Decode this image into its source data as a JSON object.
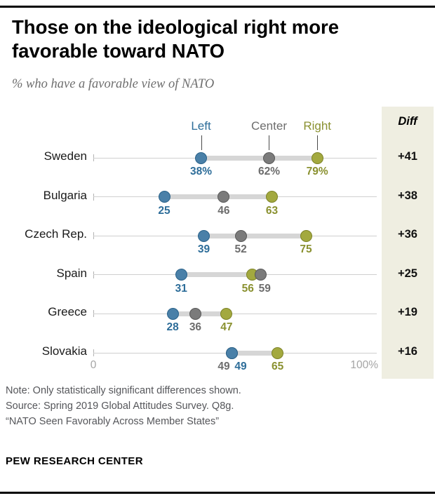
{
  "title": "Those on the ideological right more\nfavorable toward NATO",
  "subtitle": "% who have a favorable view of NATO",
  "notes": [
    "Note: Only statistically significant differences shown.",
    "Source: Spring 2019 Global Attitudes Survey. Q8g.",
    "“NATO Seen Favorably Across Member States”"
  ],
  "footer": "PEW RESEARCH CENTER",
  "chart_data": {
    "type": "dot-plot",
    "diff_header": "Diff",
    "axis": {
      "min_label": "0",
      "max_label": "100%",
      "xlim": [
        0,
        100
      ]
    },
    "series": [
      {
        "key": "left",
        "label": "Left",
        "dot": "#4a80a8",
        "stroke": "#2a628a",
        "text": "#2d6d99"
      },
      {
        "key": "center",
        "label": "Center",
        "dot": "#7b7b7b",
        "stroke": "#595959",
        "text": "#6d6d6d"
      },
      {
        "key": "right",
        "label": "Right",
        "dot": "#a3a93f",
        "stroke": "#7d8328",
        "text": "#8a9130"
      }
    ],
    "connector_color": "#d6d6d6",
    "diff_bg": "#efeee1",
    "rows": [
      {
        "country": "Sweden",
        "diff": "+41",
        "points": [
          {
            "series": "left",
            "value": 38,
            "label": "38%"
          },
          {
            "series": "center",
            "value": 62,
            "label": "62%"
          },
          {
            "series": "right",
            "value": 79,
            "label": "79%"
          }
        ]
      },
      {
        "country": "Bulgaria",
        "diff": "+38",
        "points": [
          {
            "series": "left",
            "value": 25,
            "label": "25"
          },
          {
            "series": "center",
            "value": 46,
            "label": "46"
          },
          {
            "series": "right",
            "value": 63,
            "label": "63"
          }
        ]
      },
      {
        "country": "Czech Rep.",
        "diff": "+36",
        "points": [
          {
            "series": "left",
            "value": 39,
            "label": "39"
          },
          {
            "series": "center",
            "value": 52,
            "label": "52"
          },
          {
            "series": "right",
            "value": 75,
            "label": "75"
          }
        ]
      },
      {
        "country": "Spain",
        "diff": "+25",
        "points": [
          {
            "series": "left",
            "value": 31,
            "label": "31"
          },
          {
            "series": "right",
            "value": 56,
            "label": "56"
          },
          {
            "series": "center",
            "value": 59,
            "label": "59"
          }
        ]
      },
      {
        "country": "Greece",
        "diff": "+19",
        "points": [
          {
            "series": "left",
            "value": 28,
            "label": "28"
          },
          {
            "series": "center",
            "value": 36,
            "label": "36"
          },
          {
            "series": "right",
            "value": 47,
            "label": "47"
          }
        ]
      },
      {
        "country": "Slovakia",
        "diff": "+16",
        "points": [
          {
            "series": "center",
            "value": 49,
            "label": "49"
          },
          {
            "series": "left",
            "value": 49,
            "label": "49"
          },
          {
            "series": "right",
            "value": 65,
            "label": "65"
          }
        ]
      }
    ]
  }
}
